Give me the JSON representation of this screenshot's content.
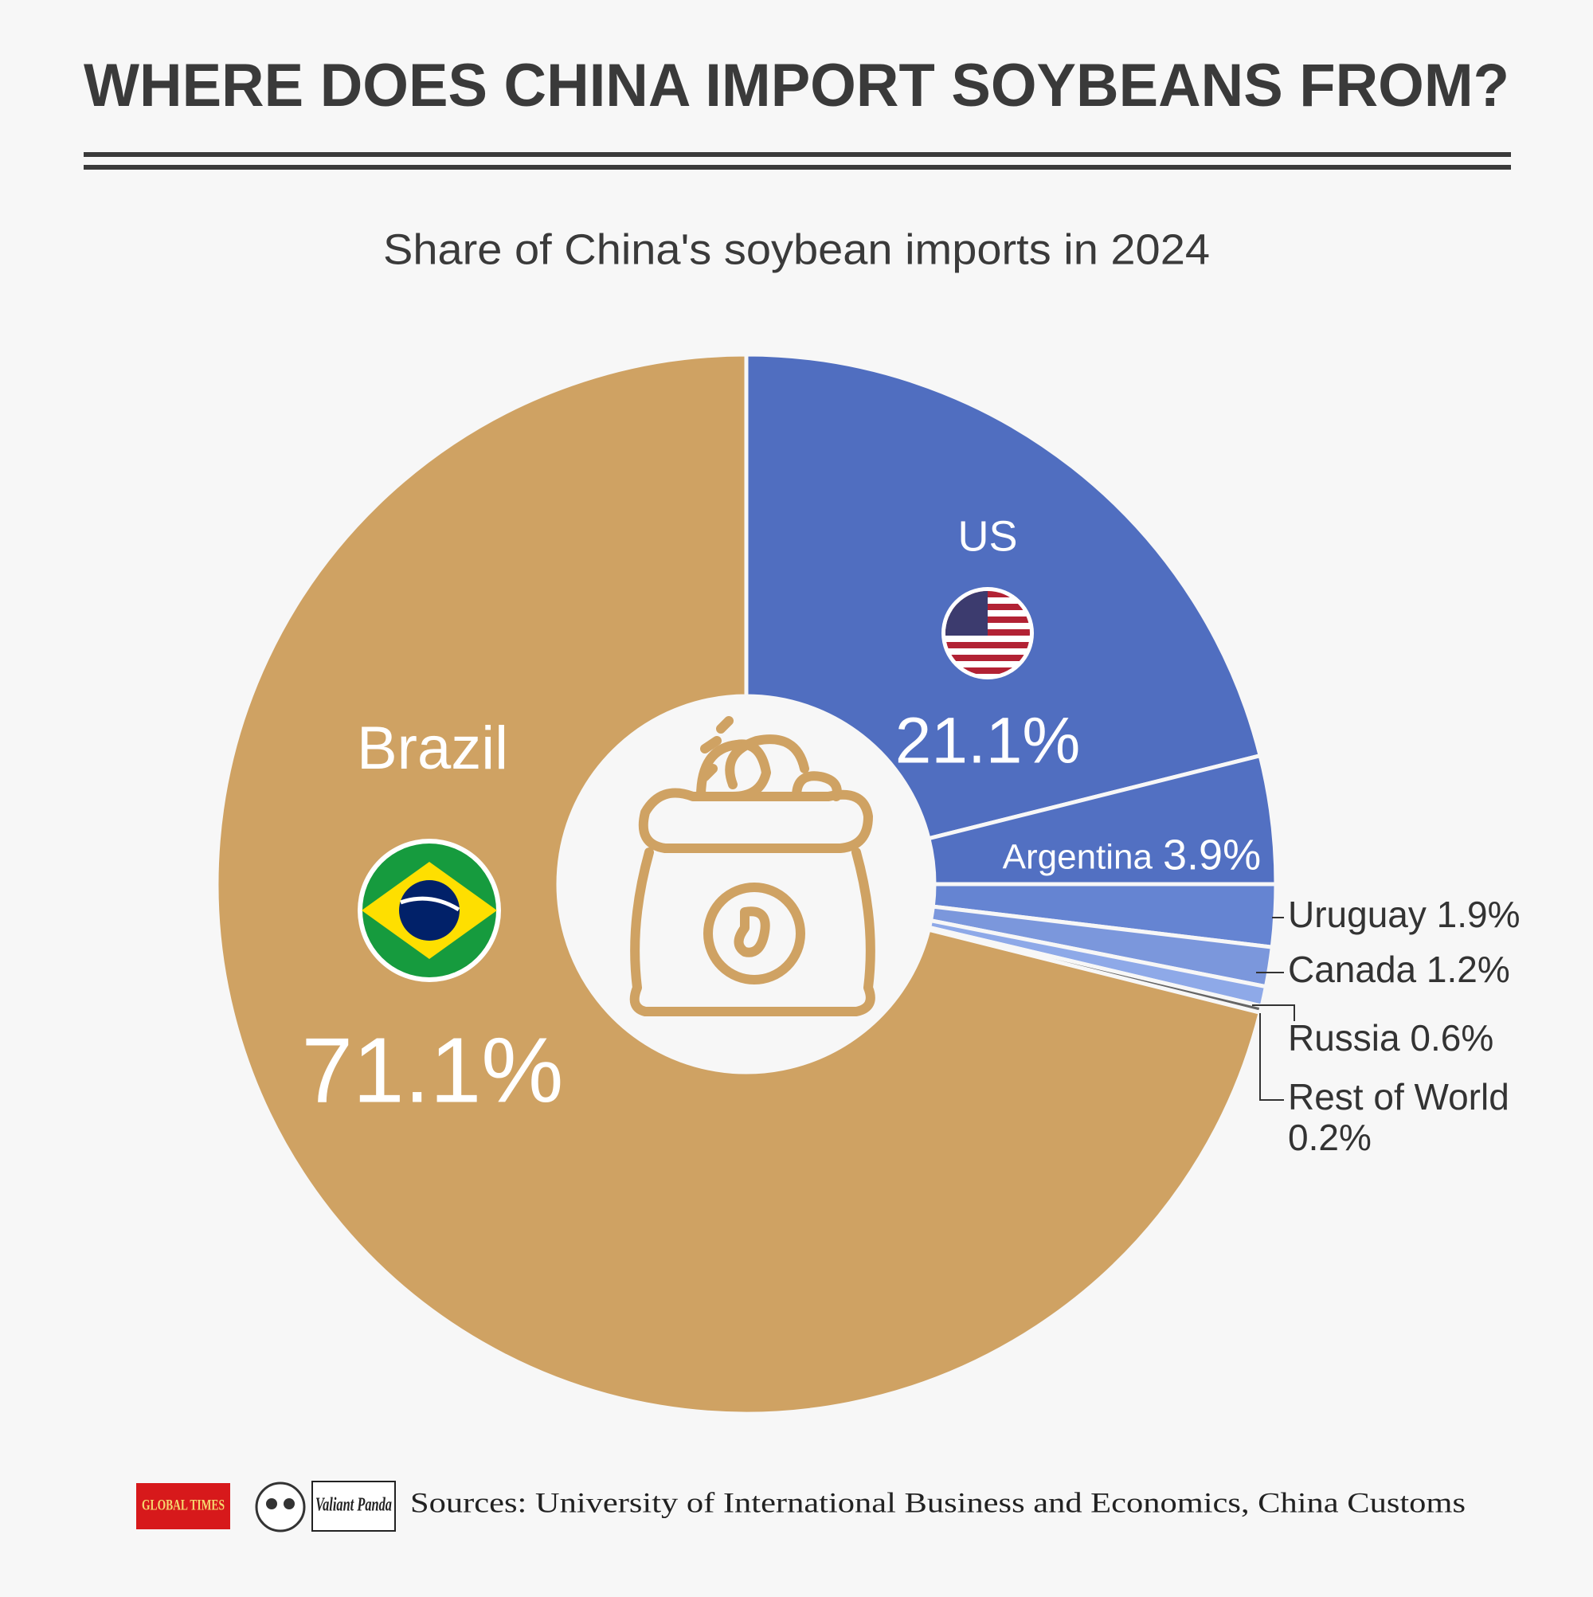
{
  "chart_data": {
    "type": "pie",
    "title": "WHERE DOES CHINA IMPORT SOYBEANS FROM?",
    "subtitle": "Share of China's soybean imports in 2024",
    "categories": [
      "US",
      "Argentina",
      "Uruguay",
      "Canada",
      "Russia",
      "Rest of World",
      "Brazil"
    ],
    "values": [
      21.1,
      3.9,
      1.9,
      1.2,
      0.6,
      0.2,
      71.1
    ],
    "value_labels": [
      "21.1%",
      "3.9%",
      "1.9%",
      "1.2%",
      "0.6%",
      "0.2%",
      "71.1%"
    ],
    "colors": [
      "#506ec0",
      "#5270c2",
      "#6584d2",
      "#7b97dc",
      "#8ea9e8",
      "#666666",
      "#cfa263"
    ],
    "source": "Sources: University of International Business and Economics, China Customs",
    "logos": [
      "GLOBAL TIMES",
      "Valiant Panda"
    ]
  }
}
